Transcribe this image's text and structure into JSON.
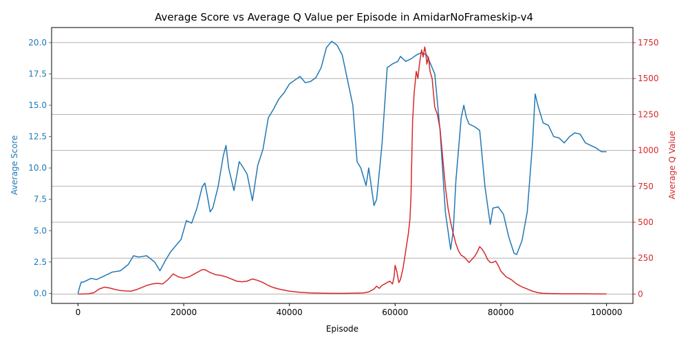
{
  "chart_data": {
    "type": "line",
    "title": "Average Score vs Average Q Value per Episode in AmidarNoFrameskip-v4",
    "xlabel": "Episode",
    "ylabel_left": "Average Score",
    "ylabel_right": "Average Q Value",
    "xlim": [
      -5000,
      105000
    ],
    "ylim_left": [
      -0.8,
      21.2
    ],
    "ylim_right": [
      -65,
      1855
    ],
    "x_ticks": [
      0,
      20000,
      40000,
      60000,
      80000,
      100000
    ],
    "x_tick_labels": [
      "0",
      "20000",
      "40000",
      "60000",
      "80000",
      "100000"
    ],
    "y_left_ticks": [
      0.0,
      2.5,
      5.0,
      7.5,
      10.0,
      12.5,
      15.0,
      17.5,
      20.0
    ],
    "y_left_tick_labels": [
      "0.0",
      "2.5",
      "5.0",
      "7.5",
      "10.0",
      "12.5",
      "15.0",
      "17.5",
      "20.0"
    ],
    "y_right_ticks": [
      0,
      250,
      500,
      750,
      1000,
      1250,
      1500,
      1750
    ],
    "y_right_tick_labels": [
      "0",
      "250",
      "500",
      "750",
      "1000",
      "1250",
      "1500",
      "1750"
    ],
    "grid": "right-axis horizontal lines",
    "colors": {
      "score": "#1f77b4",
      "q": "#d62728",
      "axis": "#000000",
      "grid": "#b0b0b0"
    },
    "series": [
      {
        "axis": "left",
        "x": [
          0,
          300,
          600,
          1000,
          1500,
          2500,
          3500,
          5000,
          6500,
          8000,
          9500,
          10500,
          11500,
          13000,
          14500,
          15500,
          16500,
          17500,
          18500,
          19500,
          20500,
          21500,
          22500,
          23500,
          24000,
          24500,
          25000,
          25500,
          26500,
          27500,
          28000,
          28500,
          29500,
          30500,
          31000,
          32000,
          33000,
          34000,
          35000,
          36000,
          37000,
          38000,
          39000,
          40000,
          41000,
          42000,
          43000,
          44000,
          45000,
          46000,
          47000,
          48000,
          49000,
          50000,
          51000,
          52000,
          52800,
          53500,
          54500,
          55000,
          55500,
          56000,
          56500,
          57500,
          58500,
          59500,
          60500,
          61000,
          62000,
          63000,
          64000,
          65000,
          66000,
          66500,
          67500,
          68500,
          69500,
          70500,
          71000,
          71500,
          72500,
          73000,
          73500,
          74000,
          75000,
          76000,
          77000,
          78000,
          78500,
          79500,
          80500,
          81500,
          82500,
          83000,
          84000,
          85000,
          86000,
          86500,
          87000,
          88000,
          89000,
          90000,
          91000,
          92000,
          93000,
          94000,
          95000,
          96000,
          97000,
          98000,
          99000,
          100000
        ],
        "y": [
          0.0,
          0.5,
          0.9,
          0.9,
          1.0,
          1.2,
          1.1,
          1.4,
          1.7,
          1.8,
          2.3,
          3.0,
          2.9,
          3.0,
          2.5,
          1.8,
          2.6,
          3.3,
          3.8,
          4.3,
          5.8,
          5.6,
          6.8,
          8.5,
          8.8,
          7.7,
          6.5,
          6.8,
          8.5,
          11.0,
          11.8,
          10.0,
          8.2,
          10.5,
          10.2,
          9.5,
          7.4,
          10.2,
          11.5,
          14.0,
          14.7,
          15.5,
          16.0,
          16.7,
          17.0,
          17.3,
          16.8,
          16.9,
          17.2,
          18.0,
          19.6,
          20.1,
          19.8,
          19.0,
          17.0,
          15.0,
          10.5,
          10.0,
          8.6,
          10.0,
          8.5,
          7.0,
          7.5,
          11.8,
          18.0,
          18.3,
          18.5,
          18.9,
          18.5,
          18.7,
          19.0,
          19.2,
          19.0,
          18.5,
          17.5,
          13.0,
          6.5,
          3.5,
          5.0,
          9.0,
          14.0,
          15.0,
          14.0,
          13.5,
          13.3,
          13.0,
          8.5,
          5.5,
          6.8,
          6.9,
          6.3,
          4.5,
          3.2,
          3.1,
          4.2,
          6.5,
          12.0,
          15.9,
          15.0,
          13.6,
          13.4,
          12.5,
          12.4,
          12.0,
          12.5,
          12.8,
          12.7,
          12.0,
          11.8,
          11.6,
          11.3,
          11.3
        ]
      },
      {
        "axis": "right",
        "x": [
          0,
          1000,
          2000,
          3000,
          4000,
          5000,
          6000,
          7000,
          8000,
          9000,
          10000,
          11000,
          12000,
          13000,
          14000,
          15000,
          16000,
          17000,
          18000,
          19000,
          20000,
          21000,
          22000,
          23000,
          23500,
          24000,
          25000,
          26000,
          27000,
          28000,
          29000,
          30000,
          31000,
          32000,
          33000,
          34000,
          35000,
          36000,
          37000,
          38000,
          40000,
          42000,
          44000,
          46000,
          48000,
          50000,
          52000,
          54000,
          55000,
          56000,
          56500,
          57000,
          57500,
          58000,
          58500,
          59000,
          59500,
          59800,
          60000,
          60300,
          60700,
          61000,
          61500,
          62000,
          62500,
          62800,
          63000,
          63300,
          63600,
          64000,
          64300,
          64600,
          65000,
          65300,
          65600,
          65800,
          66000,
          66300,
          66600,
          67000,
          67500,
          68000,
          68500,
          69000,
          69500,
          70000,
          70500,
          71000,
          71500,
          72000,
          72500,
          73000,
          73500,
          74000,
          74500,
          75000,
          75500,
          76000,
          76500,
          77000,
          77500,
          78000,
          78500,
          79000,
          79500,
          80000,
          80500,
          81000,
          82000,
          83000,
          84000,
          85000,
          86000,
          87000,
          88000,
          90000,
          92000,
          94000,
          96000,
          98000,
          100000
        ],
        "y": [
          0,
          0,
          2,
          10,
          35,
          48,
          42,
          32,
          25,
          22,
          20,
          30,
          45,
          60,
          70,
          75,
          70,
          100,
          140,
          120,
          110,
          120,
          140,
          160,
          170,
          170,
          150,
          135,
          130,
          120,
          105,
          90,
          85,
          90,
          105,
          95,
          80,
          60,
          45,
          35,
          20,
          12,
          8,
          6,
          5,
          5,
          6,
          8,
          15,
          35,
          55,
          40,
          60,
          70,
          80,
          90,
          70,
          120,
          200,
          160,
          80,
          100,
          180,
          300,
          420,
          520,
          680,
          1200,
          1400,
          1550,
          1500,
          1600,
          1700,
          1650,
          1720,
          1680,
          1600,
          1650,
          1550,
          1500,
          1300,
          1250,
          1150,
          950,
          750,
          600,
          500,
          420,
          350,
          300,
          270,
          260,
          240,
          220,
          240,
          260,
          290,
          330,
          310,
          280,
          240,
          220,
          220,
          230,
          200,
          160,
          140,
          120,
          100,
          70,
          50,
          35,
          20,
          10,
          5,
          3,
          2,
          2,
          2,
          1,
          1
        ]
      }
    ]
  }
}
